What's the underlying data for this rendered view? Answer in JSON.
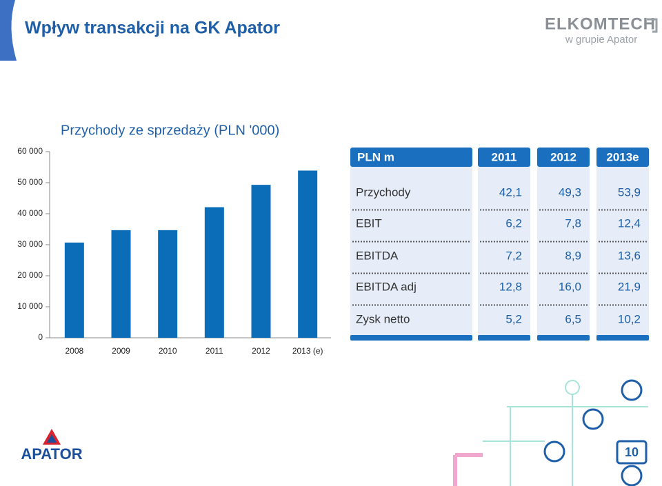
{
  "header": {
    "title": "Wpływ transakcji na GK Apator",
    "logo_main": "ELKOMTECH",
    "logo_sub": "w grupie Apator"
  },
  "chart_data": {
    "type": "bar",
    "title": "Przychody ze sprzedaży (PLN '000)",
    "categories": [
      "2008",
      "2009",
      "2010",
      "2011",
      "2012",
      "2013 (e)"
    ],
    "values": [
      30700,
      34700,
      34700,
      42100,
      49300,
      53900
    ],
    "color": "#0b6cb8",
    "ylim": [
      0,
      60000
    ],
    "yticks": [
      0,
      {
        "value": 10000,
        "label": "10 000"
      },
      {
        "value": 20000,
        "label": "20 000"
      },
      {
        "value": 30000,
        "label": "30 000"
      },
      {
        "value": 40000,
        "label": "40 000"
      },
      {
        "value": 50000,
        "label": "50 000"
      },
      {
        "value": 60000,
        "label": "60 000"
      }
    ],
    "grid": false
  },
  "table": {
    "header": [
      "PLN m",
      "2011",
      "2012",
      "2013e"
    ],
    "rows": [
      [
        "Przychody",
        "42,1",
        "49,3",
        "53,9"
      ],
      [
        "EBIT",
        "6,2",
        "7,8",
        "12,4"
      ],
      [
        "EBITDA",
        "7,2",
        "8,9",
        "13,6"
      ],
      [
        "EBITDA adj",
        "12,8",
        "16,0",
        "21,9"
      ],
      [
        "Zysk netto",
        "5,2",
        "6,5",
        "10,2"
      ]
    ]
  },
  "footer": {
    "logo": "APATOR",
    "page": "10"
  }
}
